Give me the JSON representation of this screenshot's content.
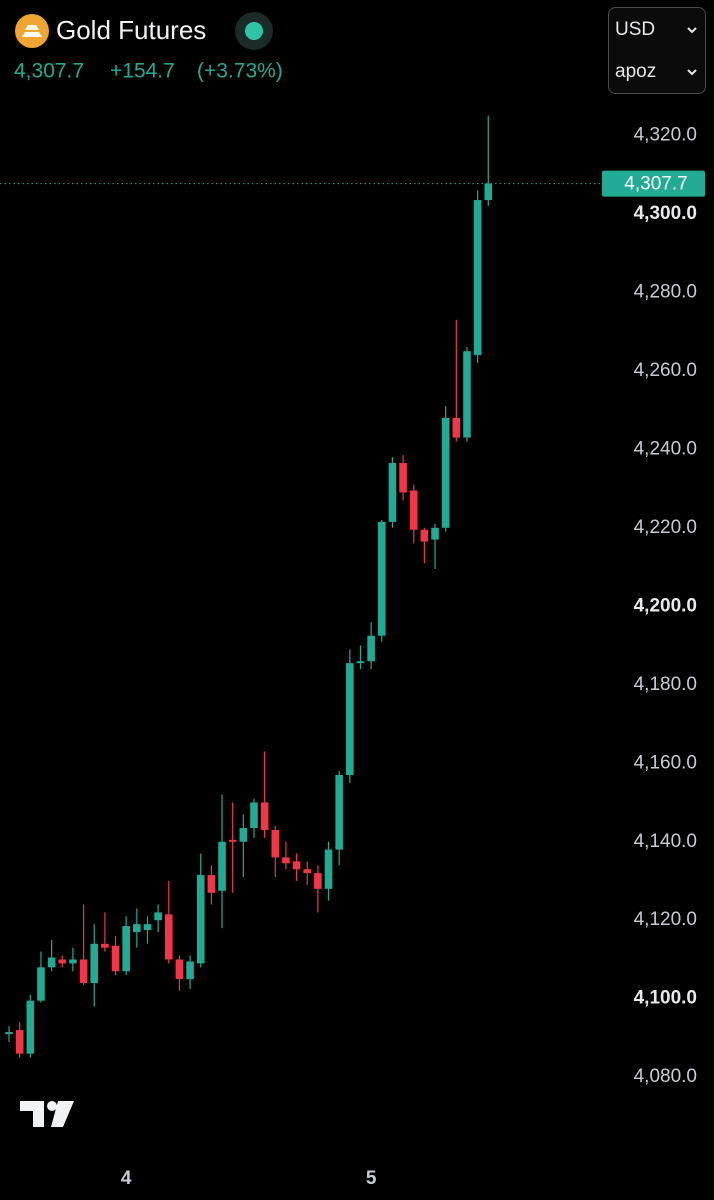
{
  "header": {
    "symbol": "Gold Futures",
    "price": "4,307.7",
    "change": "+154.7",
    "change_pct": "(+3.73%)"
  },
  "controls": {
    "currency": "USD",
    "unit": "apoz"
  },
  "chart_data": {
    "type": "candlestick",
    "categories": [
      null,
      null,
      null,
      null,
      null,
      null,
      null,
      null,
      null,
      null,
      null,
      "4",
      null,
      null,
      null,
      null,
      null,
      null,
      null,
      null,
      null,
      null,
      null,
      null,
      null,
      null,
      null,
      null,
      null,
      null,
      null,
      null,
      null,
      null,
      "5",
      null,
      null,
      null,
      null,
      null,
      null,
      null,
      null,
      null,
      null,
      null
    ],
    "open": [
      4091,
      4092,
      4086,
      4099.5,
      4108,
      4110,
      4109,
      4110,
      4104,
      4114,
      4113.5,
      4107,
      4117,
      4117.5,
      4120,
      4121.5,
      4110,
      4105,
      4109,
      4131.5,
      4127.5,
      4140.5,
      4140,
      4143.5,
      4150,
      4143,
      4136,
      4135,
      4133,
      4132,
      4128,
      4138,
      4157,
      4185.5,
      4186,
      4192.5,
      4221.5,
      4236.5,
      4229.5,
      4219.5,
      4217,
      4220,
      4248,
      4243,
      4264,
      4303.5
    ],
    "high": [
      4093,
      4094,
      4101,
      4112,
      4115,
      4111,
      4113,
      4124,
      4119,
      4122,
      4116,
      4121,
      4123,
      4121,
      4124,
      4130,
      4111,
      4111,
      4137,
      4134,
      4152,
      4150,
      4147,
      4151,
      4163,
      4144,
      4140,
      4137,
      4135,
      4134,
      4140,
      4158,
      4189,
      4190,
      4196,
      4222,
      4238,
      4238.5,
      4231,
      4220,
      4221,
      4251,
      4273,
      4266,
      4306,
      4325
    ],
    "low": [
      4089,
      4085,
      4085,
      4099,
      4107,
      4108,
      4107,
      4103.5,
      4098,
      4112,
      4106,
      4106,
      4113,
      4114,
      4117,
      4109,
      4102,
      4102.5,
      4108,
      4124,
      4118,
      4127,
      4131,
      4141,
      4141,
      4131,
      4133,
      4130,
      4129,
      4122,
      4125,
      4134,
      4155,
      4184,
      4184,
      4191,
      4220,
      4227,
      4216,
      4211,
      4209.5,
      4219,
      4242,
      4242,
      4262,
      4302
    ],
    "close": [
      4091.5,
      4086,
      4099.5,
      4108,
      4110.5,
      4109,
      4110,
      4104,
      4114,
      4113,
      4107,
      4118.5,
      4119,
      4119,
      4122,
      4110,
      4105,
      4109.5,
      4131.5,
      4127,
      4140,
      4140,
      4143.5,
      4150,
      4143,
      4136,
      4134.5,
      4133,
      4132,
      4128,
      4138,
      4157,
      4185.5,
      4186,
      4192.5,
      4221.5,
      4236.5,
      4229,
      4219.5,
      4216.5,
      4220,
      4248,
      4243,
      4265,
      4303.5,
      4307.7
    ],
    "up_color": "#22ab94",
    "down_color": "#f23645",
    "ylim": [
      4064,
      4329
    ],
    "yticks": [
      {
        "value": 4080,
        "label": "4,080.0"
      },
      {
        "value": 4100,
        "label": "4,100.0"
      },
      {
        "value": 4120,
        "label": "4,120.0"
      },
      {
        "value": 4140,
        "label": "4,140.0"
      },
      {
        "value": 4160,
        "label": "4,160.0"
      },
      {
        "value": 4180,
        "label": "4,180.0"
      },
      {
        "value": 4200,
        "label": "4,200.0"
      },
      {
        "value": 4220,
        "label": "4,220.0"
      },
      {
        "value": 4240,
        "label": "4,240.0"
      },
      {
        "value": 4260,
        "label": "4,260.0"
      },
      {
        "value": 4280,
        "label": "4,280.0"
      },
      {
        "value": 4300,
        "label": "4,300.0"
      },
      {
        "value": 4320,
        "label": "4,320.0"
      }
    ],
    "grid": false
  }
}
